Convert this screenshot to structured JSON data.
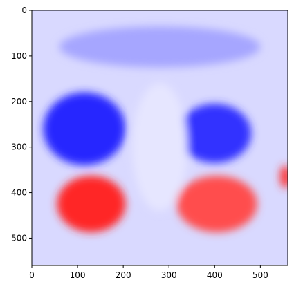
{
  "chart_data": {
    "type": "heatmap",
    "title": "",
    "xlabel": "",
    "ylabel": "",
    "colormap": "bwr",
    "colors": {
      "negative": "#0000ff",
      "zero": "#ffffff",
      "positive": "#ff0000"
    },
    "xlim": [
      0,
      560
    ],
    "ylim": [
      560,
      0
    ],
    "x_ticks": [
      0,
      100,
      200,
      300,
      400,
      500
    ],
    "y_ticks": [
      0,
      100,
      200,
      300,
      400,
      500
    ],
    "x_tick_labels": [
      "0",
      "100",
      "200",
      "300",
      "400",
      "500"
    ],
    "y_tick_labels": [
      "0",
      "100",
      "200",
      "300",
      "400",
      "500"
    ],
    "background_value": -0.15,
    "regions": [
      {
        "name": "left-red-lobe",
        "cx": 130,
        "cy": 425,
        "rx": 75,
        "ry": 62,
        "value": 0.85
      },
      {
        "name": "right-red-lobe",
        "cx": 405,
        "cy": 425,
        "rx": 88,
        "ry": 62,
        "value": 0.7
      },
      {
        "name": "left-blue-lobe",
        "cx": 115,
        "cy": 260,
        "rx": 90,
        "ry": 80,
        "value": -0.85
      },
      {
        "name": "right-blue-lobe",
        "cx": 400,
        "cy": 270,
        "rx": 80,
        "ry": 65,
        "value": -0.8
      },
      {
        "name": "top-blue-band",
        "cx": 280,
        "cy": 80,
        "rx": 220,
        "ry": 45,
        "value": -0.35
      },
      {
        "name": "center-light",
        "cx": 280,
        "cy": 300,
        "rx": 60,
        "ry": 140,
        "value": -0.1
      },
      {
        "name": "right-edge-red",
        "cx": 555,
        "cy": 365,
        "rx": 12,
        "ry": 25,
        "value": 0.8
      }
    ]
  }
}
